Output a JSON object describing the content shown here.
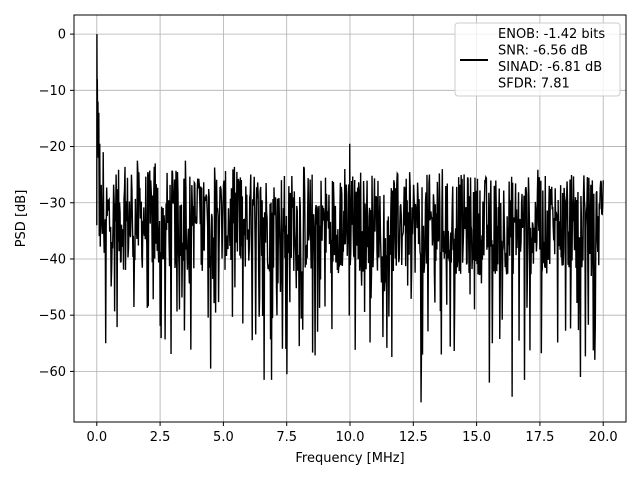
{
  "chart_data": {
    "type": "line",
    "title": "",
    "xlabel": "Frequency [MHz]",
    "ylabel": "PSD [dB]",
    "xlim": [
      -0.9,
      20.9
    ],
    "ylim": [
      -69,
      3.4
    ],
    "xticks": [
      0.0,
      2.5,
      5.0,
      7.5,
      10.0,
      12.5,
      15.0,
      17.5,
      20.0
    ],
    "xtick_labels": [
      "0.0",
      "2.5",
      "5.0",
      "7.5",
      "10.0",
      "12.5",
      "15.0",
      "17.5",
      "20.0"
    ],
    "yticks": [
      0,
      -10,
      -20,
      -30,
      -40,
      -50,
      -60
    ],
    "ytick_labels": [
      "0",
      "−10",
      "−20",
      "−30",
      "−40",
      "−50",
      "−60"
    ],
    "grid": true,
    "legend_position": "upper-right",
    "line_color": "#000000",
    "legend": {
      "entries": [
        "ENOB: -1.42 bits",
        "SNR: -6.56 dB",
        "SINAD: -6.81 dB",
        "SFDR: 7.81"
      ]
    },
    "series": [
      {
        "x_range": [
          0.0,
          20.0
        ],
        "num_points": 1024,
        "noise_floor_approx": -33,
        "peaks": [
          {
            "x": 0.0,
            "y": 0.0
          },
          {
            "x": 0.03,
            "y": -8.0
          },
          {
            "x": 0.06,
            "y": -14.0
          },
          {
            "x": 0.12,
            "y": -19.5
          },
          {
            "x": 0.25,
            "y": -21.0
          },
          {
            "x": 10.0,
            "y": -19.5
          },
          {
            "x": 1.6,
            "y": -22.5
          },
          {
            "x": 2.3,
            "y": -23.0
          },
          {
            "x": 3.5,
            "y": -22.5
          }
        ],
        "troughs": [
          {
            "x": 0.35,
            "y": -55.0
          },
          {
            "x": 4.5,
            "y": -59.5
          },
          {
            "x": 6.6,
            "y": -61.5
          },
          {
            "x": 6.9,
            "y": -61.5
          },
          {
            "x": 7.5,
            "y": -60.5
          },
          {
            "x": 12.8,
            "y": -65.5
          },
          {
            "x": 15.5,
            "y": -62.0
          },
          {
            "x": 16.4,
            "y": -64.5
          },
          {
            "x": 16.9,
            "y": -61.5
          },
          {
            "x": 19.1,
            "y": -61.0
          },
          {
            "x": 13.6,
            "y": -57.0
          },
          {
            "x": 8.0,
            "y": -55.5
          }
        ]
      }
    ]
  }
}
